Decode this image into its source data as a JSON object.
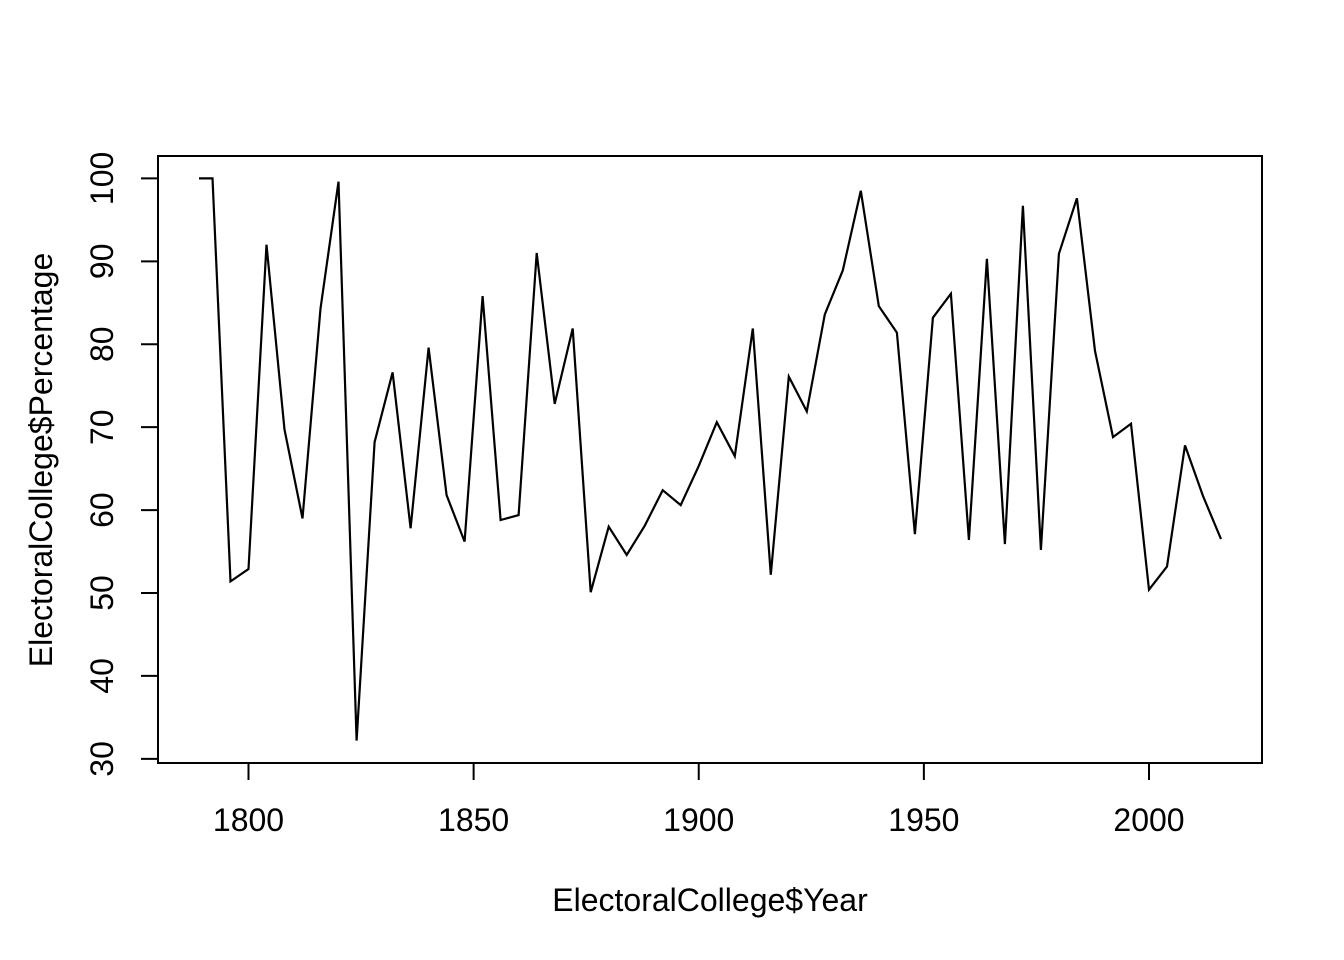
{
  "chart_data": {
    "type": "line",
    "title": "",
    "xlabel": "ElectoralCollege$Year",
    "ylabel": "ElectoralCollege$Percentage",
    "x": [
      1789,
      1792,
      1796,
      1800,
      1804,
      1808,
      1812,
      1816,
      1820,
      1824,
      1828,
      1832,
      1836,
      1840,
      1844,
      1848,
      1852,
      1856,
      1860,
      1864,
      1868,
      1872,
      1876,
      1880,
      1884,
      1888,
      1892,
      1896,
      1900,
      1904,
      1908,
      1912,
      1916,
      1920,
      1924,
      1928,
      1932,
      1936,
      1940,
      1944,
      1948,
      1952,
      1956,
      1960,
      1964,
      1968,
      1972,
      1976,
      1980,
      1984,
      1988,
      1992,
      1996,
      2000,
      2004,
      2008,
      2012,
      2016
    ],
    "series": [
      {
        "name": "ElectoralCollege$Percentage",
        "values": [
          100,
          100,
          51.4,
          52.9,
          92.0,
          69.7,
          59.0,
          84.3,
          99.6,
          32.2,
          68.2,
          76.6,
          57.8,
          79.6,
          61.8,
          56.2,
          85.8,
          58.8,
          59.4,
          91.0,
          72.8,
          81.9,
          50.1,
          58.0,
          54.6,
          58.1,
          62.4,
          60.6,
          65.3,
          70.6,
          66.5,
          81.9,
          52.2,
          76.1,
          71.9,
          83.6,
          88.9,
          98.5,
          84.6,
          81.4,
          57.1,
          83.2,
          86.1,
          56.4,
          90.3,
          55.9,
          96.7,
          55.2,
          90.9,
          97.6,
          79.2,
          68.8,
          70.4,
          50.4,
          53.2,
          67.8,
          61.7,
          56.5
        ]
      }
    ],
    "xlim": [
      1779.9,
      2025.1
    ],
    "ylim": [
      29.5,
      102.7
    ],
    "x_ticks": [
      "1800",
      "1850",
      "1900",
      "1950",
      "2000"
    ],
    "y_ticks": [
      "30",
      "40",
      "50",
      "60",
      "70",
      "80",
      "90",
      "100"
    ],
    "grid": false,
    "legend": "none",
    "line_color": "#000000",
    "axis_color": "#000000",
    "background_color": "#ffffff"
  }
}
